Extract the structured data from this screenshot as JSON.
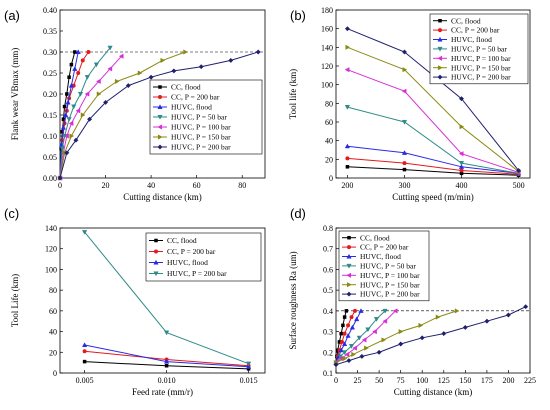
{
  "colors": {
    "CC_flood": "#000000",
    "CC_200": "#e41a1c",
    "HUVC_flood": "#2a2ae6",
    "HUVC_50": "#2e8b87",
    "HUVC_100": "#d62fd6",
    "HUVC_150": "#8a8a12",
    "HUVC_200": "#20206e"
  },
  "chart_data": [
    {
      "type": "line",
      "panel_label": "(a)",
      "xlabel": "Cutting distance (km)",
      "ylabel": "Flank wear VBmax (mm)",
      "xlim": [
        0,
        90
      ],
      "ylim": [
        0.0,
        0.4
      ],
      "xticks": [
        0,
        20,
        40,
        60,
        80
      ],
      "yticks": [
        0.0,
        0.05,
        0.1,
        0.15,
        0.2,
        0.25,
        0.3,
        0.35,
        0.4
      ],
      "ytick_labels": [
        "0.00",
        "0.05",
        "0.10",
        "0.15",
        "0.20",
        "0.25",
        "0.30",
        "0.35",
        "0.40"
      ],
      "reference_line_y": 0.3,
      "legend_position": "bottom-right",
      "series": [
        {
          "name": "CC, flood",
          "marker": "square",
          "color_key": "CC_flood",
          "x": [
            0,
            0.5,
            1,
            1.5,
            2,
            3,
            4,
            5,
            6.5
          ],
          "y": [
            0,
            0.07,
            0.11,
            0.14,
            0.17,
            0.2,
            0.24,
            0.27,
            0.3
          ]
        },
        {
          "name": "CC, P = 200 bar",
          "marker": "circle",
          "color_key": "CC_200",
          "x": [
            0,
            1,
            2,
            3,
            4,
            6,
            8,
            10,
            12.5
          ],
          "y": [
            0,
            0.09,
            0.13,
            0.16,
            0.19,
            0.22,
            0.25,
            0.28,
            0.3
          ]
        },
        {
          "name": "HUVC, flood",
          "marker": "triangle-up",
          "color_key": "HUVC_flood",
          "x": [
            0,
            0.7,
            1.5,
            2.5,
            3.5,
            5,
            6.5,
            8
          ],
          "y": [
            0,
            0.08,
            0.12,
            0.15,
            0.18,
            0.22,
            0.26,
            0.3
          ]
        },
        {
          "name": "HUVC, P =  50 bar",
          "marker": "triangle-down",
          "color_key": "HUVC_50",
          "x": [
            0,
            1,
            2,
            4,
            6,
            9,
            12,
            16,
            22
          ],
          "y": [
            0,
            0.07,
            0.1,
            0.14,
            0.17,
            0.2,
            0.24,
            0.27,
            0.31
          ]
        },
        {
          "name": "HUVC, P = 100 bar",
          "marker": "triangle-left",
          "color_key": "HUVC_100",
          "x": [
            0,
            1.5,
            3,
            5,
            8,
            12,
            17,
            22,
            27
          ],
          "y": [
            0,
            0.06,
            0.1,
            0.13,
            0.16,
            0.2,
            0.23,
            0.26,
            0.29
          ]
        },
        {
          "name": "HUVC, P = 150 bar",
          "marker": "triangle-right",
          "color_key": "HUVC_150",
          "x": [
            0,
            2,
            5,
            10,
            17,
            25,
            35,
            45,
            55
          ],
          "y": [
            0,
            0.06,
            0.1,
            0.15,
            0.2,
            0.23,
            0.25,
            0.28,
            0.3
          ]
        },
        {
          "name": "HUVC, P = 200 bar",
          "marker": "diamond",
          "color_key": "HUVC_200",
          "x": [
            0,
            3,
            7,
            13,
            20,
            30,
            40,
            50,
            62,
            75,
            87
          ],
          "y": [
            0,
            0.06,
            0.09,
            0.14,
            0.18,
            0.22,
            0.24,
            0.255,
            0.265,
            0.28,
            0.3
          ]
        }
      ]
    },
    {
      "type": "line",
      "panel_label": "(b)",
      "xlabel": "Cutting speed (m/min)",
      "ylabel": "Tool life (km)",
      "xlim": [
        180,
        520
      ],
      "ylim": [
        0,
        180
      ],
      "xticks": [
        200,
        300,
        400,
        500
      ],
      "yticks": [
        0,
        20,
        40,
        60,
        80,
        100,
        120,
        140,
        160,
        180
      ],
      "legend_position": "top-right",
      "series": [
        {
          "name": "CC, flood",
          "marker": "square",
          "color_key": "CC_flood",
          "x": [
            200,
            300,
            400,
            500
          ],
          "y": [
            12,
            9,
            5,
            3
          ]
        },
        {
          "name": "CC, P = 200 bar",
          "marker": "circle",
          "color_key": "CC_200",
          "x": [
            200,
            300,
            400,
            500
          ],
          "y": [
            21,
            16,
            8,
            4
          ]
        },
        {
          "name": "HUVC, flood",
          "marker": "triangle-up",
          "color_key": "HUVC_flood",
          "x": [
            200,
            300,
            400,
            500
          ],
          "y": [
            34,
            27,
            12,
            5
          ]
        },
        {
          "name": "HUVC, P = 50 bar",
          "marker": "triangle-down",
          "color_key": "HUVC_50",
          "x": [
            200,
            300,
            400,
            500
          ],
          "y": [
            76,
            60,
            16,
            5
          ]
        },
        {
          "name": "HUVC, P = 100 bar",
          "marker": "triangle-left",
          "color_key": "HUVC_100",
          "x": [
            200,
            300,
            400,
            500
          ],
          "y": [
            116,
            93,
            26,
            6
          ]
        },
        {
          "name": "HUVC, P = 150 bar",
          "marker": "triangle-right",
          "color_key": "HUVC_150",
          "x": [
            200,
            300,
            400,
            500
          ],
          "y": [
            140,
            116,
            55,
            7
          ]
        },
        {
          "name": "HUVC, P = 200 bar",
          "marker": "diamond",
          "color_key": "HUVC_200",
          "x": [
            200,
            300,
            400,
            500
          ],
          "y": [
            160,
            135,
            85,
            8
          ]
        }
      ]
    },
    {
      "type": "line",
      "panel_label": "(c)",
      "xlabel": "Feed rate (mm/r)",
      "ylabel": "Tool Life (km)",
      "xlim": [
        0.0035,
        0.016
      ],
      "ylim": [
        0,
        140
      ],
      "xticks": [
        0.005,
        0.01,
        0.015
      ],
      "xtick_labels": [
        "0.005",
        "0.010",
        "0.015"
      ],
      "yticks": [
        0,
        20,
        40,
        60,
        80,
        100,
        120,
        140
      ],
      "legend_position": "top-right",
      "series": [
        {
          "name": "CC, flood",
          "marker": "square",
          "color_key": "CC_flood",
          "x": [
            0.005,
            0.01,
            0.015
          ],
          "y": [
            11,
            7,
            4
          ]
        },
        {
          "name": "CC, P = 200 bar",
          "marker": "circle",
          "color_key": "CC_200",
          "x": [
            0.005,
            0.01,
            0.015
          ],
          "y": [
            21,
            13,
            7
          ]
        },
        {
          "name": "HUVC, flood",
          "marker": "triangle-up",
          "color_key": "HUVC_flood",
          "x": [
            0.005,
            0.01,
            0.015
          ],
          "y": [
            27,
            11,
            6
          ]
        },
        {
          "name": "HUVC, P = 200 bar",
          "marker": "triangle-down",
          "color_key": "HUVC_50",
          "x": [
            0.005,
            0.01,
            0.015
          ],
          "y": [
            136,
            39,
            9
          ]
        }
      ]
    },
    {
      "type": "line",
      "panel_label": "(d)",
      "xlabel": "Cutting distance (km)",
      "ylabel": "Surface roughness Ra (um)",
      "xlim": [
        0,
        225
      ],
      "ylim": [
        0.1,
        0.8
      ],
      "xticks": [
        0,
        25,
        50,
        75,
        100,
        125,
        150,
        175,
        200,
        225
      ],
      "yticks": [
        0.1,
        0.2,
        0.3,
        0.4,
        0.5,
        0.6,
        0.7,
        0.8
      ],
      "reference_line_y": 0.4,
      "legend_position": "top-left",
      "series": [
        {
          "name": "CC, flood",
          "marker": "square",
          "color_key": "CC_flood",
          "x": [
            0,
            1,
            2,
            4,
            6,
            8,
            10,
            12
          ],
          "y": [
            0.15,
            0.18,
            0.21,
            0.25,
            0.29,
            0.33,
            0.37,
            0.4
          ]
        },
        {
          "name": "CC, P = 200 bar",
          "marker": "circle",
          "color_key": "CC_200",
          "x": [
            0,
            2,
            4,
            7,
            10,
            14,
            18,
            22
          ],
          "y": [
            0.15,
            0.18,
            0.21,
            0.25,
            0.29,
            0.33,
            0.37,
            0.4
          ]
        },
        {
          "name": "HUVC, flood",
          "marker": "triangle-up",
          "color_key": "HUVC_flood",
          "x": [
            0,
            3,
            6,
            10,
            14,
            19,
            24,
            29
          ],
          "y": [
            0.15,
            0.18,
            0.21,
            0.24,
            0.28,
            0.32,
            0.36,
            0.4
          ]
        },
        {
          "name": "HUVC, P = 50 bar",
          "marker": "triangle-down",
          "color_key": "HUVC_50",
          "x": [
            0,
            5,
            10,
            18,
            27,
            37,
            47,
            57
          ],
          "y": [
            0.15,
            0.18,
            0.2,
            0.23,
            0.27,
            0.31,
            0.36,
            0.4
          ]
        },
        {
          "name": "HUVC, P = 100 bar",
          "marker": "triangle-left",
          "color_key": "HUVC_100",
          "x": [
            0,
            6,
            13,
            22,
            33,
            45,
            57,
            69
          ],
          "y": [
            0.15,
            0.17,
            0.19,
            0.22,
            0.26,
            0.3,
            0.35,
            0.4
          ]
        },
        {
          "name": "HUVC, P = 150 bar",
          "marker": "triangle-right",
          "color_key": "HUVC_150",
          "x": [
            0,
            10,
            20,
            35,
            55,
            75,
            98,
            118,
            140
          ],
          "y": [
            0.15,
            0.17,
            0.19,
            0.22,
            0.26,
            0.3,
            0.33,
            0.37,
            0.4
          ]
        },
        {
          "name": "HUVC, P = 200 bar",
          "marker": "diamond",
          "color_key": "HUVC_200",
          "x": [
            0,
            15,
            30,
            50,
            75,
            100,
            125,
            150,
            175,
            200,
            220
          ],
          "y": [
            0.14,
            0.16,
            0.18,
            0.2,
            0.24,
            0.27,
            0.29,
            0.32,
            0.35,
            0.38,
            0.42
          ]
        }
      ]
    }
  ]
}
